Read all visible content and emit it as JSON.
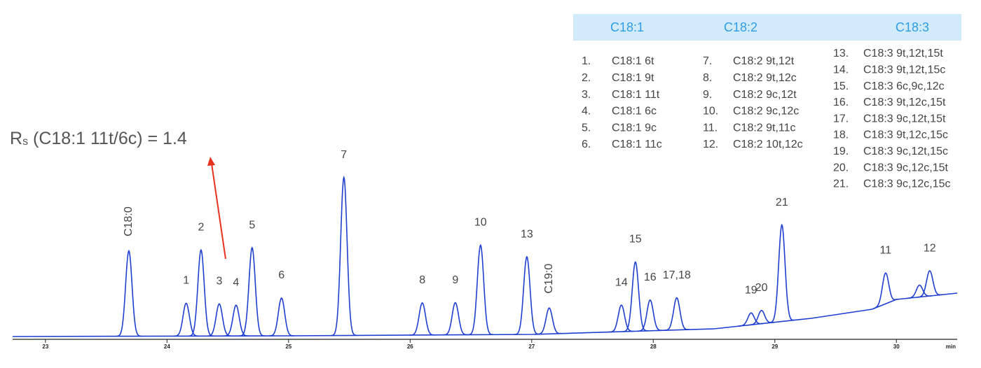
{
  "chart_data": {
    "type": "chromatogram",
    "color": "#1f3fd0",
    "x_unit": "min",
    "xlim": [
      22.73,
      30.5
    ],
    "xticks": [
      23,
      24,
      25,
      26,
      27,
      28,
      29,
      30
    ],
    "ylim": [
      0,
      100
    ],
    "baseline": {
      "x": [
        22.73,
        25,
        27,
        28.5,
        29.3,
        29.8,
        30.0,
        30.5
      ],
      "y": [
        0,
        0.4,
        1.2,
        4.4,
        10.4,
        15.6,
        21.2,
        24.8
      ]
    },
    "peak_labels": [
      "C18:0",
      "1",
      "2",
      "3",
      "4",
      "5",
      "6",
      "7",
      "8",
      "9",
      "10",
      "13",
      "C19:0",
      "14",
      "15",
      "16",
      "17,18",
      "19",
      "20",
      "21",
      "11",
      null,
      "12"
    ],
    "peak_times": [
      23.686,
      24.158,
      24.28,
      24.43,
      24.568,
      24.7,
      24.942,
      25.455,
      26.1,
      26.372,
      26.579,
      26.96,
      27.144,
      27.738,
      27.853,
      27.974,
      28.193,
      28.804,
      28.89,
      29.058,
      29.911,
      30.19,
      30.274
    ],
    "peak_heights": [
      48.8,
      18.8,
      49.2,
      18.4,
      17.6,
      50.4,
      21.6,
      90.4,
      18.4,
      18.4,
      51.2,
      44.4,
      14.8,
      15.2,
      39.6,
      17.6,
      18.4,
      6.8,
      7.6,
      55.2,
      17.6,
      6.8,
      14.4
    ],
    "annotation": {
      "symbol": "R",
      "subscript": "s",
      "text": " (C18:1 11t/6c) = 1.4"
    },
    "legend": {
      "headers": [
        "C18:1",
        "C18:2",
        "C18:3"
      ],
      "columns": [
        [
          {
            "number": "1.",
            "name": "C18:1 6t"
          },
          {
            "number": "2.",
            "name": "C18:1 9t"
          },
          {
            "number": "3.",
            "name": "C18:1 11t"
          },
          {
            "number": "4.",
            "name": "C18:1 6c"
          },
          {
            "number": "5.",
            "name": "C18:1 9c"
          },
          {
            "number": "6.",
            "name": "C18:1 11c"
          }
        ],
        [
          {
            "number": "7.",
            "name": "C18:2 9t,12t"
          },
          {
            "number": "8.",
            "name": "C18:2 9t,12c"
          },
          {
            "number": "9.",
            "name": "C18:2 9c,12t"
          },
          {
            "number": "10.",
            "name": "C18:2 9c,12c"
          },
          {
            "number": "11.",
            "name": "C18:2 9t,11c"
          },
          {
            "number": "12.",
            "name": "C18:2 10t,12c"
          }
        ],
        [
          {
            "number": "13.",
            "name": "C18:3 9t,12t,15t"
          },
          {
            "number": "14.",
            "name": "C18:3 9t,12t,15c"
          },
          {
            "number": "15.",
            "name": "C18:3 6c,9c,12c"
          },
          {
            "number": "16.",
            "name": "C18:3 9t,12c,15t"
          },
          {
            "number": "17.",
            "name": "C18:3 9c,12t,15t"
          },
          {
            "number": "18.",
            "name": "C18:3 9t,12c,15c"
          },
          {
            "number": "19.",
            "name": "C18:3 9c,12t,15c"
          },
          {
            "number": "20.",
            "name": "C18:3 9c,12c,15t"
          },
          {
            "number": "21.",
            "name": "C18:3 9c,12c,15c"
          }
        ]
      ]
    }
  }
}
